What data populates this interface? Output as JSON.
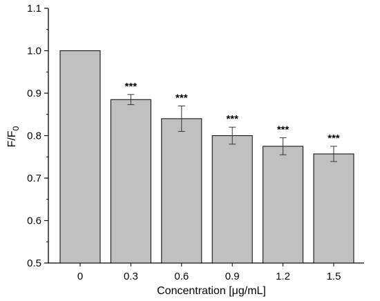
{
  "chart_data": {
    "type": "bar",
    "categories": [
      "0",
      "0.3",
      "0.6",
      "0.9",
      "1.2",
      "1.5"
    ],
    "values": [
      1.0,
      0.885,
      0.84,
      0.8,
      0.775,
      0.757
    ],
    "error": [
      0,
      0.012,
      0.03,
      0.02,
      0.02,
      0.018
    ],
    "annotations": [
      "",
      "***",
      "***",
      "***",
      "***",
      "***"
    ],
    "xlabel_main": "Concentration [",
    "xlabel_mu": "μ",
    "xlabel_rest": "g/mL]",
    "ylabel_main": "F/F",
    "ylabel_sub": "0",
    "ylim": [
      0.5,
      1.1
    ],
    "yticks": [
      "0.5",
      "0.6",
      "0.7",
      "0.8",
      "0.9",
      "1.0",
      "1.1"
    ],
    "grid": false,
    "bar_color": "#c0c0c0"
  }
}
